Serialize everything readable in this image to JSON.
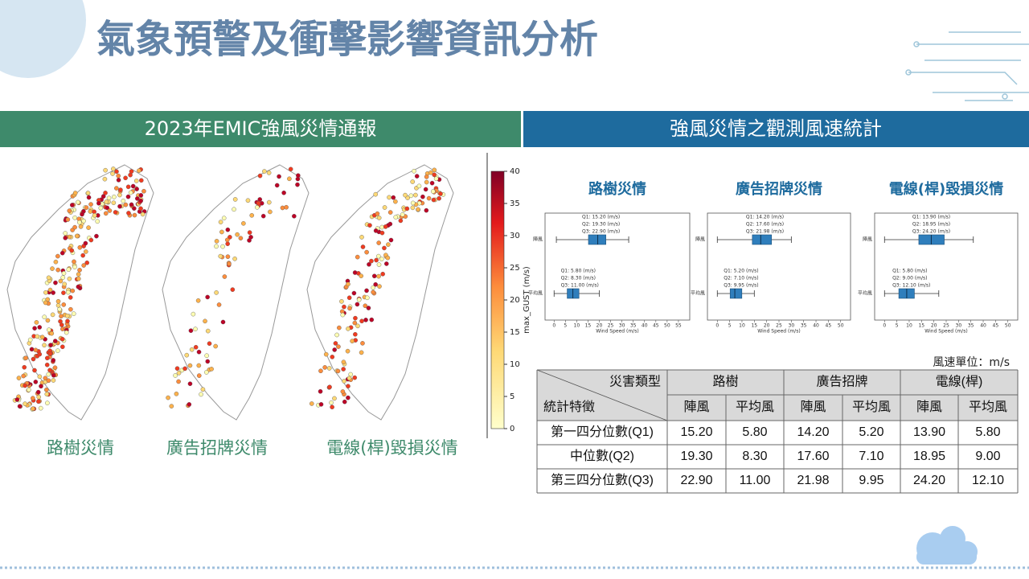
{
  "title": "氣象預警及衝擊影響資訊分析",
  "left": {
    "header": "2023年EMIC強風災情通報",
    "maps": [
      {
        "label": "路樹災情"
      },
      {
        "label": "廣告招牌災情"
      },
      {
        "label": "電線(桿)毀損災情"
      }
    ],
    "colorbar": {
      "label": "max_GUST (m/s)",
      "lim": [
        0,
        40
      ],
      "ticks": [
        0,
        5,
        10,
        15,
        20,
        25,
        30,
        35,
        40
      ]
    }
  },
  "right": {
    "header": "強風災情之觀測風速統計",
    "boxplots": [
      {
        "title": "路樹災情",
        "x_label": "Wind Speed (m/s)",
        "xlim": [
          -4,
          60
        ],
        "xticks": [
          0,
          5,
          10,
          15,
          20,
          25,
          30,
          35,
          40,
          45,
          50,
          55
        ],
        "series": [
          {
            "name": "陣風",
            "q1": 15.2,
            "q2": 19.3,
            "q3": 22.9,
            "whisker": [
              1,
              33
            ],
            "notes": [
              "Q1: 15.20 (m/s)",
              "Q2: 19.30 (m/s)",
              "Q3: 22.90 (m/s)"
            ]
          },
          {
            "name": "平均風",
            "q1": 5.8,
            "q2": 8.3,
            "q3": 11.0,
            "whisker": [
              0,
              20
            ],
            "notes": [
              "Q1: 5.80 (m/s)",
              "Q2: 8.30 (m/s)",
              "Q3: 11.00 (m/s)"
            ]
          }
        ]
      },
      {
        "title": "廣告招牌災情",
        "x_label": "Wind Speed (m/s)",
        "xlim": [
          -4,
          54
        ],
        "xticks": [
          0,
          5,
          10,
          15,
          20,
          25,
          30,
          35,
          40,
          45,
          50
        ],
        "series": [
          {
            "name": "陣風",
            "q1": 14.2,
            "q2": 17.6,
            "q3": 21.98,
            "whisker": [
              0,
              30
            ],
            "notes": [
              "Q1: 14.20 (m/s)",
              "Q2: 17.60 (m/s)",
              "Q3: 21.98 (m/s)"
            ]
          },
          {
            "name": "平均風",
            "q1": 5.2,
            "q2": 7.1,
            "q3": 9.95,
            "whisker": [
              0,
              15
            ],
            "notes": [
              "Q1: 5.20 (m/s)",
              "Q2: 7.10 (m/s)",
              "Q3: 9.95 (m/s)"
            ]
          }
        ]
      },
      {
        "title": "電線(桿)毀損災情",
        "x_label": "Wind Speed (m/s)",
        "xlim": [
          -4,
          54
        ],
        "xticks": [
          0,
          5,
          10,
          15,
          20,
          25,
          30,
          35,
          40,
          45,
          50
        ],
        "series": [
          {
            "name": "陣風",
            "q1": 13.9,
            "q2": 18.95,
            "q3": 24.2,
            "whisker": [
              0,
              36
            ],
            "notes": [
              "Q1: 13.90 (m/s)",
              "Q2: 18.95 (m/s)",
              "Q3: 24.20 (m/s)"
            ]
          },
          {
            "name": "平均風",
            "q1": 5.8,
            "q2": 9.0,
            "q3": 12.1,
            "whisker": [
              0,
              22
            ],
            "notes": [
              "Q1: 5.80 (m/s)",
              "Q2: 9.00 (m/s)",
              "Q3: 12.10 (m/s)"
            ]
          }
        ]
      }
    ],
    "unit_note": "風速單位：m/s",
    "table": {
      "corner_top": "災害類型",
      "corner_bottom": "統計特徵",
      "groups": [
        "路樹",
        "廣告招牌",
        "電線(桿)"
      ],
      "subheaders": [
        "陣風",
        "平均風",
        "陣風",
        "平均風",
        "陣風",
        "平均風"
      ],
      "rows": [
        [
          "第一四分位數(Q1)",
          "15.20",
          "5.80",
          "14.20",
          "5.20",
          "13.90",
          "5.80"
        ],
        [
          "中位數(Q2)",
          "19.30",
          "8.30",
          "17.60",
          "7.10",
          "18.95",
          "9.00"
        ],
        [
          "第三四分位數(Q3)",
          "22.90",
          "11.00",
          "21.98",
          "9.95",
          "24.20",
          "12.10"
        ]
      ]
    }
  }
}
